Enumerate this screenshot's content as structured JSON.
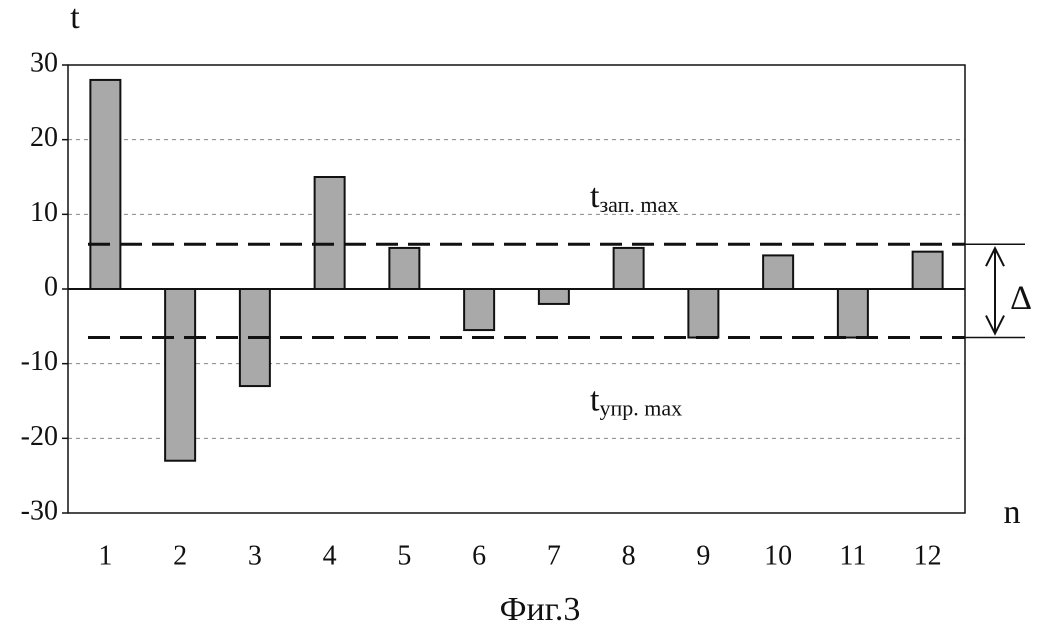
{
  "chart_data": {
    "type": "bar",
    "caption": "Фиг.3",
    "y_label": "t",
    "x_label": "n",
    "categories": [
      1,
      2,
      3,
      4,
      5,
      6,
      7,
      8,
      9,
      10,
      11,
      12
    ],
    "values": [
      28,
      -23,
      -13,
      15,
      5.5,
      -5.5,
      -2,
      5.5,
      -6.5,
      4.5,
      -6.5,
      5
    ],
    "color": "#a9a9a9",
    "ylim": [
      -30,
      30
    ],
    "yticks": [
      -30,
      -20,
      -10,
      0,
      10,
      20,
      30
    ],
    "grid": true,
    "reference_lines": [
      {
        "value": 6,
        "label": "t",
        "subscript": "зап. max"
      },
      {
        "value": -6.5,
        "label": "t",
        "subscript": "упр. max"
      }
    ],
    "delta_label": "Δ"
  }
}
